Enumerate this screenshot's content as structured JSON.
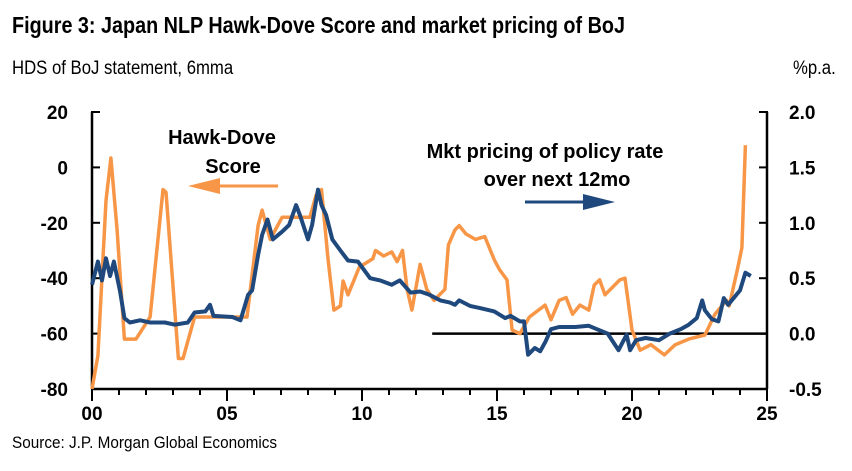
{
  "chart_data": {
    "type": "line",
    "title": "Figure 3: Japan NLP Hawk-Dove Score and market pricing of BoJ",
    "left_axis_label": "HDS of BoJ statement, 6mma",
    "right_axis_label": "%p.a.",
    "source": "Source: J.P. Morgan Global Economics",
    "x_ticks": [
      "00",
      "05",
      "10",
      "15",
      "20",
      "25"
    ],
    "xlim": [
      2000,
      2025
    ],
    "left_ylim": [
      -80,
      20
    ],
    "left_ticks": [
      "20",
      "0",
      "-20",
      "-40",
      "-60",
      "-80"
    ],
    "right_ylim": [
      -0.5,
      2.0
    ],
    "right_ticks": [
      "2.0",
      "1.5",
      "1.0",
      "0.5",
      "0.0",
      "-0.5"
    ],
    "grid": false,
    "zero_line_right": 0.0,
    "annotations": {
      "hds_label_line1": "Hawk-Dove",
      "hds_label_line2": "Score",
      "mkt_label_line1": "Mkt pricing of policy rate",
      "mkt_label_line2": "over next 12mo"
    },
    "series": [
      {
        "key": "hds",
        "axis": "left",
        "color": "#F79646",
        "x": [
          2000,
          2000.22,
          2000.52,
          2000.7,
          2000.93,
          2001.2,
          2001.63,
          2002.15,
          2002.63,
          2002.74,
          2003.2,
          2003.37,
          2003.8,
          2004.6,
          2005.74,
          2006.15,
          2006.3,
          2006.6,
          2007.04,
          2007.3,
          2008.07,
          2008.3,
          2008.5,
          2008.74,
          2008.96,
          2009.2,
          2009.3,
          2009.48,
          2009.9,
          2010.4,
          2010.5,
          2010.8,
          2011.1,
          2011.3,
          2011.5,
          2011.67,
          2011.85,
          2012.15,
          2012.4,
          2012.67,
          2013.07,
          2013.2,
          2013.44,
          2013.6,
          2013.85,
          2014.2,
          2014.55,
          2014.9,
          2015.1,
          2015.37,
          2015.56,
          2015.85,
          2016.2,
          2016.78,
          2017,
          2017.3,
          2017.56,
          2017.8,
          2018.07,
          2018.4,
          2018.6,
          2018.8,
          2019,
          2019.55,
          2019.74,
          2020,
          2020.3,
          2020.7,
          2021.2,
          2021.6,
          2022.1,
          2022.7,
          2023.07,
          2023.5,
          2023.6,
          2023.9,
          2024.07,
          2024.2
        ],
        "y": [
          -80,
          -68,
          -12,
          3.4,
          -22.6,
          -62,
          -62,
          -54,
          -8,
          -9,
          -69,
          -69,
          -54,
          -54,
          -54,
          -21,
          -15.4,
          -26,
          -18,
          -18,
          -18,
          -10,
          -8,
          -33,
          -51.5,
          -50,
          -41,
          -46,
          -36,
          -33,
          -30,
          -32,
          -30.5,
          -34,
          -30,
          -44,
          -51.5,
          -35,
          -44,
          -48,
          -44,
          -28,
          -22.6,
          -21,
          -24,
          -26,
          -25,
          -33.4,
          -37,
          -40.6,
          -58.7,
          -60,
          -54,
          -49.7,
          -55,
          -48,
          -47,
          -53,
          -49.7,
          -51.5,
          -42.5,
          -40.6,
          -46,
          -40.6,
          -40,
          -58.7,
          -66,
          -64,
          -67.7,
          -64,
          -62,
          -60.5,
          -53,
          -48,
          -50,
          -37,
          -29,
          8
        ]
      },
      {
        "key": "mkt",
        "axis": "right",
        "color": "#1F497D",
        "x": [
          2000,
          2000.22,
          2000.37,
          2000.52,
          2000.67,
          2000.81,
          2001.04,
          2001.2,
          2001.4,
          2001.78,
          2002.15,
          2002.7,
          2003.07,
          2003.55,
          2003.8,
          2004.2,
          2004.37,
          2004.5,
          2005.2,
          2005.5,
          2005.78,
          2005.93,
          2006.15,
          2006.3,
          2006.5,
          2006.7,
          2007.04,
          2007.3,
          2007.56,
          2007.7,
          2008,
          2008.15,
          2008.37,
          2008.5,
          2008.67,
          2008.9,
          2009.2,
          2009.48,
          2009.85,
          2010.3,
          2010.67,
          2011.1,
          2011.4,
          2011.8,
          2012.15,
          2012.5,
          2012.9,
          2013.26,
          2013.44,
          2013.6,
          2014,
          2014.37,
          2014.9,
          2015.3,
          2015.5,
          2015.85,
          2016,
          2016.15,
          2016.4,
          2016.6,
          2016.8,
          2017,
          2017.3,
          2017.9,
          2018.4,
          2018.7,
          2019.1,
          2019.5,
          2019.8,
          2019.93,
          2020.15,
          2020.5,
          2021,
          2021.4,
          2021.8,
          2022.1,
          2022.4,
          2022.6,
          2022.7,
          2022.96,
          2023.2,
          2023.4,
          2023.56,
          2024,
          2024.2,
          2024.4
        ],
        "y": [
          0.44,
          0.65,
          0.48,
          0.68,
          0.52,
          0.65,
          0.38,
          0.14,
          0.1,
          0.12,
          0.1,
          0.1,
          0.08,
          0.1,
          0.19,
          0.2,
          0.26,
          0.16,
          0.15,
          0.12,
          0.35,
          0.39,
          0.71,
          0.89,
          1.03,
          0.85,
          0.92,
          0.98,
          1.16,
          1.07,
          0.85,
          0.98,
          1.3,
          1.16,
          1.07,
          0.85,
          0.75,
          0.66,
          0.65,
          0.5,
          0.48,
          0.44,
          0.48,
          0.37,
          0.38,
          0.35,
          0.3,
          0.28,
          0.26,
          0.3,
          0.25,
          0.23,
          0.2,
          0.14,
          0.16,
          0.11,
          0.11,
          -0.19,
          -0.13,
          -0.16,
          -0.07,
          0.04,
          0.06,
          0.06,
          0.07,
          0.04,
          0.0,
          -0.15,
          -0.01,
          -0.15,
          -0.06,
          -0.04,
          -0.06,
          0.0,
          0.04,
          0.08,
          0.14,
          0.3,
          0.21,
          0.13,
          0.11,
          0.32,
          0.26,
          0.39,
          0.55,
          0.52
        ]
      }
    ]
  }
}
